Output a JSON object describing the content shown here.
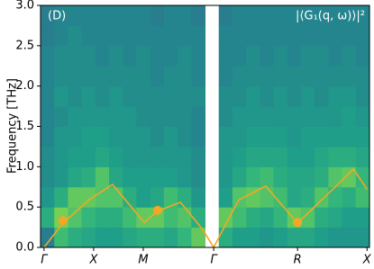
{
  "chart_data": {
    "type": "heatmap",
    "ylabel": "Frequency [THz]",
    "annotations": [
      "(D)",
      "|⟨G₁(q, ω)⟩|²"
    ],
    "xlim": [
      -0.07,
      6.56
    ],
    "ylim": [
      0,
      3.0
    ],
    "xticks": [
      {
        "value": 0,
        "label": "Γ"
      },
      {
        "value": 1,
        "label": "X"
      },
      {
        "value": 2,
        "label": "M"
      },
      {
        "value": 3.42,
        "label": "Γ"
      },
      {
        "value": 5.11,
        "label": "R"
      },
      {
        "value": 6.51,
        "label": "X"
      }
    ],
    "yticks": [
      {
        "value": 0,
        "label": "0.0"
      },
      0.5,
      {
        "value": 1,
        "label": "1.0"
      },
      1.5,
      {
        "value": 2,
        "label": "2.0"
      },
      2.5,
      {
        "value": 3,
        "label": "3.0"
      }
    ],
    "colormap": [
      "#3e4a89",
      "#31688e",
      "#26828e",
      "#1f9e89",
      "#35b779",
      "#6ece58",
      "#b5de2b"
    ],
    "z": [
      [
        0.3,
        0.7,
        0.6,
        0.55,
        0.5,
        0.5,
        0.55,
        0.6,
        0.6,
        0.55,
        0.65,
        0.8,
        null,
        0.6,
        0.5,
        0.5,
        0.45,
        0.5,
        0.55,
        0.55,
        0.5,
        0.45,
        0.45,
        0.45
      ],
      [
        0.6,
        0.85,
        0.75,
        0.65,
        0.6,
        0.6,
        0.7,
        0.8,
        0.8,
        0.7,
        0.75,
        0.6,
        null,
        0.8,
        0.7,
        0.6,
        0.55,
        0.65,
        0.8,
        0.75,
        0.6,
        0.55,
        0.5,
        0.5
      ],
      [
        0.45,
        0.6,
        0.8,
        0.8,
        0.75,
        0.75,
        0.6,
        0.5,
        0.55,
        0.7,
        0.6,
        0.45,
        null,
        0.5,
        0.75,
        0.8,
        0.75,
        0.7,
        0.55,
        0.6,
        0.75,
        0.65,
        0.6,
        0.7
      ],
      [
        0.4,
        0.45,
        0.55,
        0.6,
        0.75,
        0.55,
        0.5,
        0.5,
        0.5,
        0.5,
        0.45,
        0.4,
        null,
        0.45,
        0.55,
        0.65,
        0.7,
        0.6,
        0.55,
        0.55,
        0.6,
        0.75,
        0.8,
        0.65
      ],
      [
        0.4,
        0.45,
        0.5,
        0.5,
        0.55,
        0.5,
        0.45,
        0.45,
        0.45,
        0.45,
        0.45,
        0.4,
        null,
        0.45,
        0.5,
        0.55,
        0.55,
        0.55,
        0.5,
        0.5,
        0.55,
        0.6,
        0.6,
        0.55
      ],
      [
        0.35,
        0.45,
        0.45,
        0.5,
        0.5,
        0.45,
        0.45,
        0.45,
        0.4,
        0.45,
        0.4,
        0.35,
        null,
        0.45,
        0.45,
        0.5,
        0.5,
        0.5,
        0.45,
        0.5,
        0.5,
        0.5,
        0.5,
        0.5
      ],
      [
        0.35,
        0.4,
        0.45,
        0.45,
        0.45,
        0.45,
        0.45,
        0.4,
        0.4,
        0.4,
        0.4,
        0.35,
        null,
        0.4,
        0.45,
        0.45,
        0.45,
        0.45,
        0.45,
        0.45,
        0.45,
        0.45,
        0.5,
        0.45
      ],
      [
        0.35,
        0.45,
        0.4,
        0.45,
        0.4,
        0.45,
        0.4,
        0.4,
        0.4,
        0.4,
        0.4,
        0.4,
        null,
        0.4,
        0.4,
        0.45,
        0.4,
        0.45,
        0.4,
        0.45,
        0.4,
        0.45,
        0.45,
        0.4
      ],
      [
        0.35,
        0.4,
        0.4,
        0.4,
        0.4,
        0.4,
        0.4,
        0.4,
        0.35,
        0.4,
        0.4,
        0.35,
        null,
        0.35,
        0.4,
        0.4,
        0.4,
        0.4,
        0.4,
        0.4,
        0.4,
        0.4,
        0.4,
        0.4
      ],
      [
        0.35,
        0.4,
        0.4,
        0.4,
        0.35,
        0.4,
        0.35,
        0.4,
        0.35,
        0.35,
        0.4,
        0.35,
        null,
        0.35,
        0.35,
        0.4,
        0.35,
        0.4,
        0.35,
        0.4,
        0.4,
        0.35,
        0.4,
        0.35
      ],
      [
        0.3,
        0.35,
        0.4,
        0.35,
        0.35,
        0.35,
        0.35,
        0.35,
        0.35,
        0.35,
        0.35,
        0.35,
        null,
        0.35,
        0.35,
        0.35,
        0.35,
        0.35,
        0.35,
        0.35,
        0.35,
        0.35,
        0.35,
        0.35
      ],
      [
        0.3,
        0.35,
        0.35,
        0.35,
        0.35,
        0.35,
        0.35,
        0.35,
        0.3,
        0.35,
        0.35,
        0.3,
        null,
        0.3,
        0.35,
        0.35,
        0.35,
        0.35,
        0.35,
        0.35,
        0.35,
        0.35,
        0.35,
        0.35
      ]
    ],
    "line": {
      "color": "#f5a623",
      "x": [
        0,
        0.38,
        0.93,
        1.38,
        2.02,
        2.29,
        2.75,
        3.2,
        3.42,
        3.75,
        3.93,
        4.47,
        5.11,
        6.24,
        6.51
      ],
      "y": [
        0,
        0.3,
        0.6,
        0.78,
        0.31,
        0.45,
        0.56,
        0.22,
        0,
        0.39,
        0.59,
        0.76,
        0.3,
        0.97,
        0.72
      ]
    },
    "markers": {
      "color": "#f5a623",
      "x": [
        0.38,
        2.29,
        5.11
      ],
      "y": [
        0.33,
        0.46,
        0.31
      ]
    }
  }
}
